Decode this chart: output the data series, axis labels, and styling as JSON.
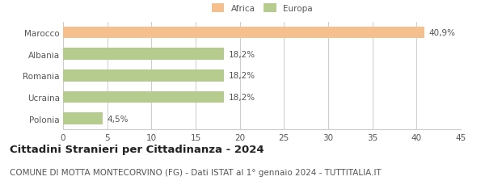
{
  "categories": [
    "Marocco",
    "Albania",
    "Romania",
    "Ucraina",
    "Polonia"
  ],
  "values": [
    40.9,
    18.2,
    18.2,
    18.2,
    4.5
  ],
  "labels": [
    "40,9%",
    "18,2%",
    "18,2%",
    "18,2%",
    "4,5%"
  ],
  "colors": [
    "#f5bf8e",
    "#b5cc8e",
    "#b5cc8e",
    "#b5cc8e",
    "#b5cc8e"
  ],
  "legend_labels": [
    "Africa",
    "Europa"
  ],
  "legend_colors": [
    "#f5bf8e",
    "#b5cc8e"
  ],
  "xlim": [
    0,
    45
  ],
  "xticks": [
    0,
    5,
    10,
    15,
    20,
    25,
    30,
    35,
    40,
    45
  ],
  "title": "Cittadini Stranieri per Cittadinanza - 2024",
  "subtitle": "COMUNE DI MOTTA MONTECORVINO (FG) - Dati ISTAT al 1° gennaio 2024 - TUTTITALIA.IT",
  "title_fontsize": 9.5,
  "subtitle_fontsize": 7.5,
  "label_fontsize": 7.5,
  "tick_fontsize": 7.5,
  "bar_height": 0.55,
  "background_color": "#ffffff",
  "grid_color": "#cccccc",
  "text_color": "#555555"
}
